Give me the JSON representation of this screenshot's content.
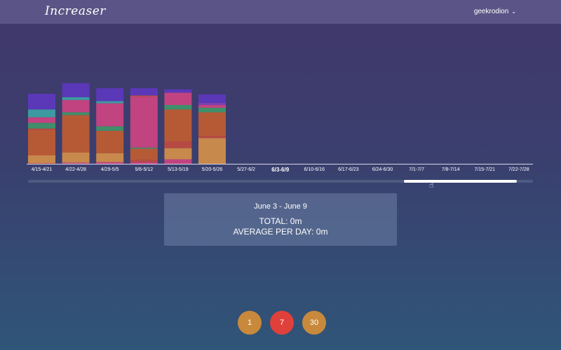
{
  "header": {
    "logo": "Increaser",
    "username": "geekrodion"
  },
  "chart_data": {
    "type": "bar",
    "stacked": true,
    "categories": [
      "4/15-4/21",
      "4/22-4/28",
      "4/29-5/5",
      "5/6-5/12",
      "5/13-5/19",
      "5/20-5/26",
      "5/27-6/2",
      "6/3-6/9",
      "6/10-6/16",
      "6/17-6/23",
      "6/24-6/30",
      "7/1-7/7",
      "7/8-7/14",
      "7/15-7/21",
      "7/22-7/28"
    ],
    "selected_category": "6/3-6/9",
    "segments": [
      [
        {
          "c": "#c0405a",
          "v": 1
        },
        {
          "c": "#c8894c",
          "v": 14
        },
        {
          "c": "#b65a36",
          "v": 45
        },
        {
          "c": "#b64a43",
          "v": 3
        },
        {
          "c": "#3f8f6a",
          "v": 10
        },
        {
          "c": "#c14380",
          "v": 10
        },
        {
          "c": "#3d9aa0",
          "v": 14
        },
        {
          "c": "#5a38b8",
          "v": 28
        }
      ],
      [
        {
          "c": "#c14380",
          "v": 2
        },
        {
          "c": "#c8894c",
          "v": 18
        },
        {
          "c": "#b65a36",
          "v": 67
        },
        {
          "c": "#3f8f6a",
          "v": 5
        },
        {
          "c": "#c14380",
          "v": 22
        },
        {
          "c": "#3d9aa0",
          "v": 5
        },
        {
          "c": "#5a38b8",
          "v": 25
        }
      ],
      [
        {
          "c": "#c14380",
          "v": 3
        },
        {
          "c": "#c8894c",
          "v": 16
        },
        {
          "c": "#b65a36",
          "v": 40
        },
        {
          "c": "#3f8f6a",
          "v": 8
        },
        {
          "c": "#c14380",
          "v": 41
        },
        {
          "c": "#3d9aa0",
          "v": 4
        },
        {
          "c": "#5a38b8",
          "v": 23
        }
      ],
      [
        {
          "c": "#c14380",
          "v": 3
        },
        {
          "c": "#b64a43",
          "v": 4
        },
        {
          "c": "#b65a36",
          "v": 20
        },
        {
          "c": "#3f8f6a",
          "v": 2
        },
        {
          "c": "#c14380",
          "v": 91
        },
        {
          "c": "#b64a43",
          "v": 2
        },
        {
          "c": "#5a38b8",
          "v": 13
        }
      ],
      [
        {
          "c": "#c14380",
          "v": 8
        },
        {
          "c": "#c8894c",
          "v": 20
        },
        {
          "c": "#b64a43",
          "v": 12
        },
        {
          "c": "#b65a36",
          "v": 57
        },
        {
          "c": "#3f8f6a",
          "v": 8
        },
        {
          "c": "#c14380",
          "v": 20
        },
        {
          "c": "#c14380",
          "v": 2
        },
        {
          "c": "#5a38b8",
          "v": 6
        }
      ],
      [
        {
          "c": "#c8894c",
          "v": 46
        },
        {
          "c": "#b64a43",
          "v": 4
        },
        {
          "c": "#b65a36",
          "v": 42
        },
        {
          "c": "#3f8f6a",
          "v": 8
        },
        {
          "c": "#c14380",
          "v": 5
        },
        {
          "c": "#7a3fb0",
          "v": 4
        },
        {
          "c": "#5a38b8",
          "v": 15
        }
      ],
      [],
      [],
      [],
      [],
      [],
      [],
      [],
      [],
      []
    ]
  },
  "summary": {
    "range": "June 3 - June 9",
    "total": "TOTAL: 0m",
    "average": "AVERAGE PER DAY: 0m"
  },
  "period_buttons": [
    {
      "label": "1",
      "color": "#c8893c"
    },
    {
      "label": "7",
      "color": "#e0403a"
    },
    {
      "label": "30",
      "color": "#c8893c"
    }
  ]
}
